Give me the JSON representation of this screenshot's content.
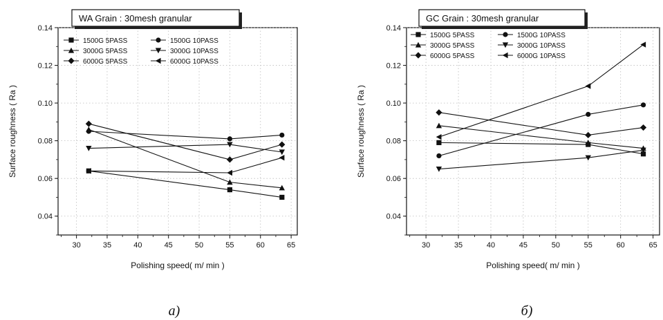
{
  "chart_data": [
    {
      "type": "line",
      "title": "WA Grain : 30mesh granular",
      "xlabel": "Polishing speed( m/ min )",
      "ylabel": "Surface roughness ( Ra )",
      "caption": "a)",
      "xlim": [
        27,
        66
      ],
      "ylim": [
        0.03,
        0.14
      ],
      "xticks": [
        "30",
        "35",
        "40",
        "45",
        "50",
        "55",
        "60",
        "65"
      ],
      "yticks": [
        "0.04",
        "0.06",
        "0.08",
        "0.10",
        "0.12",
        "0.14"
      ],
      "grid": true,
      "legend_position": "top-left",
      "x": [
        32,
        55,
        63.5
      ],
      "series": [
        {
          "name": "1500G  5PASS",
          "marker": "square",
          "values": [
            0.064,
            0.054,
            0.05
          ]
        },
        {
          "name": "1500G 10PASS",
          "marker": "circle",
          "values": [
            0.085,
            0.081,
            0.083
          ]
        },
        {
          "name": "3000G  5PASS",
          "marker": "triangle-up",
          "values": [
            0.086,
            0.058,
            0.055
          ]
        },
        {
          "name": "3000G 10PASS",
          "marker": "triangle-down",
          "values": [
            0.076,
            0.078,
            0.074
          ]
        },
        {
          "name": "6000G  5PASS",
          "marker": "diamond",
          "values": [
            0.089,
            0.07,
            0.078
          ]
        },
        {
          "name": "6000G 10PASS",
          "marker": "triangle-left",
          "values": [
            0.064,
            0.063,
            0.071
          ]
        }
      ]
    },
    {
      "type": "line",
      "title": "GC Grain : 30mesh granular",
      "xlabel": "Polishing speed( m/ min )",
      "ylabel": "Surface roughness ( Ra )",
      "caption": "б)",
      "xlim": [
        27,
        66
      ],
      "ylim": [
        0.03,
        0.14
      ],
      "xticks": [
        "30",
        "35",
        "40",
        "45",
        "50",
        "55",
        "60",
        "65"
      ],
      "yticks": [
        "0.04",
        "0.06",
        "0.08",
        "0.10",
        "0.12",
        "0.14"
      ],
      "grid": true,
      "legend_position": "top-left",
      "x": [
        32,
        55,
        63.5
      ],
      "series": [
        {
          "name": "1500G  5PASS",
          "marker": "square",
          "values": [
            0.079,
            0.078,
            0.073
          ]
        },
        {
          "name": "1500G 10PASS",
          "marker": "circle",
          "values": [
            0.072,
            0.094,
            0.099
          ]
        },
        {
          "name": "3000G  5PASS",
          "marker": "triangle-up",
          "values": [
            0.088,
            0.079,
            0.076
          ]
        },
        {
          "name": "3000G 10PASS",
          "marker": "triangle-down",
          "values": [
            0.065,
            0.071,
            0.075
          ]
        },
        {
          "name": "6000G  5PASS",
          "marker": "diamond",
          "values": [
            0.095,
            0.083,
            0.087
          ]
        },
        {
          "name": "6000G 10PASS",
          "marker": "triangle-left",
          "values": [
            0.082,
            0.109,
            0.131
          ]
        }
      ]
    }
  ]
}
